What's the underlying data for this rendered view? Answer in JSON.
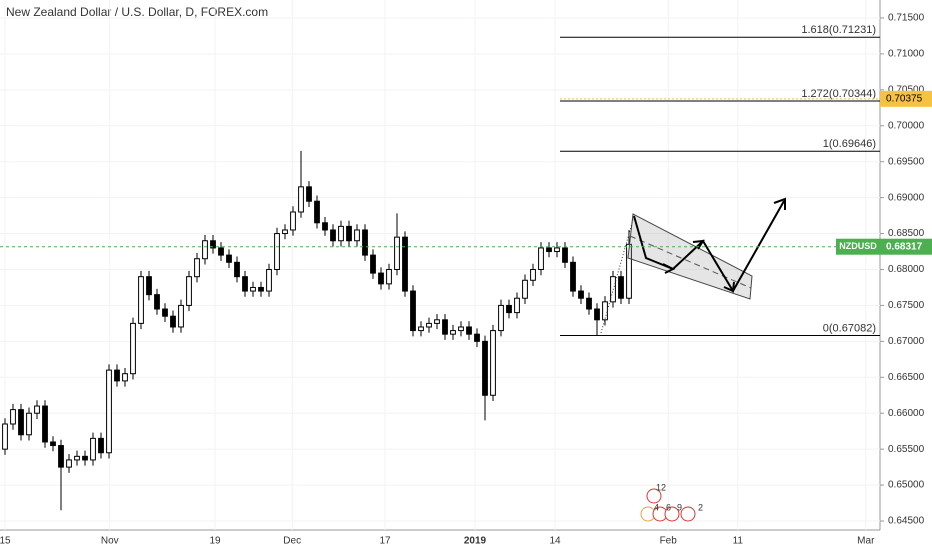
{
  "chart_data": {
    "type": "candlestick",
    "title": "New Zealand Dollar / U.S. Dollar, D, FOREX.com",
    "up_color": "#ffffff",
    "down_color": "#000000",
    "wick_color": "#000000",
    "open": [
      0.655,
      0.6585,
      0.6605,
      0.657,
      0.66,
      0.661,
      0.656,
      0.6555,
      0.6525,
      0.6535,
      0.654,
      0.6535,
      0.6565,
      0.6545,
      0.666,
      0.6645,
      0.6655,
      0.6725,
      0.679,
      0.6765,
      0.6745,
      0.6735,
      0.672,
      0.675,
      0.679,
      0.6815,
      0.684,
      0.683,
      0.682,
      0.681,
      0.679,
      0.677,
      0.6775,
      0.677,
      0.68,
      0.685,
      0.6855,
      0.688,
      0.6915,
      0.6895,
      0.6865,
      0.6855,
      0.684,
      0.686,
      0.684,
      0.6855,
      0.682,
      0.6795,
      0.678,
      0.68,
      0.6845,
      0.677,
      0.6715,
      0.672,
      0.6725,
      0.673,
      0.671,
      0.6715,
      0.672,
      0.671,
      0.67,
      0.6625,
      0.6715,
      0.675,
      0.674,
      0.676,
      0.6785,
      0.68,
      0.683,
      0.6825,
      0.683,
      0.681,
      0.677,
      0.676,
      0.6745,
      0.673,
      0.6755,
      0.679,
      0.676
    ],
    "high": [
      0.6593,
      0.6613,
      0.6613,
      0.6608,
      0.6618,
      0.6618,
      0.6568,
      0.6563,
      0.6543,
      0.6548,
      0.6548,
      0.6573,
      0.6573,
      0.6668,
      0.6668,
      0.6663,
      0.6733,
      0.6798,
      0.6798,
      0.6773,
      0.6753,
      0.6743,
      0.6758,
      0.6798,
      0.6823,
      0.6848,
      0.6848,
      0.6838,
      0.6828,
      0.6818,
      0.6798,
      0.6783,
      0.6783,
      0.6808,
      0.6858,
      0.6863,
      0.6888,
      0.6965,
      0.6923,
      0.6903,
      0.6873,
      0.6863,
      0.6868,
      0.6868,
      0.6863,
      0.6863,
      0.6828,
      0.6803,
      0.6808,
      0.6878,
      0.6853,
      0.6778,
      0.6728,
      0.6733,
      0.6738,
      0.6738,
      0.6723,
      0.6728,
      0.6728,
      0.6718,
      0.6708,
      0.6723,
      0.6758,
      0.6758,
      0.6768,
      0.6793,
      0.6808,
      0.6838,
      0.6838,
      0.6838,
      0.6838,
      0.6818,
      0.6778,
      0.6768,
      0.6753,
      0.6763,
      0.6798,
      0.6798,
      0.6855
    ],
    "low": [
      0.6542,
      0.6577,
      0.6562,
      0.6562,
      0.6592,
      0.6552,
      0.6547,
      0.6465,
      0.6517,
      0.6527,
      0.6527,
      0.6527,
      0.6537,
      0.6537,
      0.6637,
      0.6637,
      0.6647,
      0.6717,
      0.6757,
      0.6737,
      0.6727,
      0.6712,
      0.6712,
      0.6742,
      0.6782,
      0.6807,
      0.6822,
      0.6812,
      0.6802,
      0.6782,
      0.6762,
      0.6762,
      0.6762,
      0.6762,
      0.6792,
      0.6842,
      0.6847,
      0.6872,
      0.6887,
      0.6857,
      0.6847,
      0.6832,
      0.6832,
      0.6832,
      0.6832,
      0.6812,
      0.6787,
      0.6772,
      0.6772,
      0.6792,
      0.6762,
      0.6707,
      0.6707,
      0.6712,
      0.6717,
      0.6702,
      0.6702,
      0.6707,
      0.6702,
      0.6692,
      0.659,
      0.6617,
      0.6707,
      0.6732,
      0.6732,
      0.6752,
      0.6777,
      0.6792,
      0.6817,
      0.6817,
      0.6802,
      0.6762,
      0.6752,
      0.6737,
      0.6708,
      0.6722,
      0.6747,
      0.6752,
      0.6752
    ],
    "close": [
      0.6585,
      0.6605,
      0.657,
      0.66,
      0.661,
      0.656,
      0.6555,
      0.6525,
      0.6535,
      0.654,
      0.6535,
      0.6565,
      0.6545,
      0.666,
      0.6645,
      0.6655,
      0.6725,
      0.679,
      0.6765,
      0.6745,
      0.6735,
      0.672,
      0.675,
      0.679,
      0.6815,
      0.684,
      0.683,
      0.682,
      0.681,
      0.679,
      0.677,
      0.6775,
      0.677,
      0.68,
      0.685,
      0.6855,
      0.688,
      0.6915,
      0.6895,
      0.6865,
      0.6855,
      0.684,
      0.686,
      0.684,
      0.6855,
      0.682,
      0.6795,
      0.678,
      0.68,
      0.6845,
      0.677,
      0.6715,
      0.672,
      0.6725,
      0.673,
      0.671,
      0.6715,
      0.672,
      0.671,
      0.67,
      0.6625,
      0.6715,
      0.675,
      0.674,
      0.676,
      0.6785,
      0.68,
      0.683,
      0.6825,
      0.683,
      0.681,
      0.677,
      0.676,
      0.6745,
      0.673,
      0.6755,
      0.679,
      0.676,
      0.6835
    ],
    "xlim": [
      -0.625,
      109.375
    ],
    "xticks": [
      {
        "value": 0,
        "label": "15"
      },
      {
        "value": 13.1,
        "label": "Nov"
      },
      {
        "value": 26.25,
        "label": "19"
      },
      {
        "value": 35.9,
        "label": "Dec"
      },
      {
        "value": 47.5,
        "label": "17"
      },
      {
        "value": 58.75,
        "label": "2019"
      },
      {
        "value": 68.75,
        "label": "14"
      },
      {
        "value": 82.9,
        "label": "Feb"
      },
      {
        "value": 91.6,
        "label": "11"
      },
      {
        "value": 107.6,
        "label": "Mar"
      }
    ],
    "ylim": [
      0.64375,
      0.7175
    ],
    "yticks": [
      {
        "value": 0.645,
        "label": "0.64500"
      },
      {
        "value": 0.65,
        "label": "0.65000"
      },
      {
        "value": 0.655,
        "label": "0.65500"
      },
      {
        "value": 0.66,
        "label": "0.66000"
      },
      {
        "value": 0.665,
        "label": "0.66500"
      },
      {
        "value": 0.67,
        "label": "0.67000"
      },
      {
        "value": 0.675,
        "label": "0.67500"
      },
      {
        "value": 0.68,
        "label": "0.68000"
      },
      {
        "value": 0.685,
        "label": "0.68500"
      },
      {
        "value": 0.69,
        "label": "0.69000"
      },
      {
        "value": 0.695,
        "label": "0.69500"
      },
      {
        "value": 0.7,
        "label": "0.70000"
      },
      {
        "value": 0.705,
        "label": "0.70500"
      },
      {
        "value": 0.71,
        "label": "0.71000"
      },
      {
        "value": 0.715,
        "label": "0.71500"
      }
    ],
    "fib_levels": [
      {
        "value": 0.71231,
        "label": "1.618(0.71231)"
      },
      {
        "value": 0.70344,
        "label": "1.272(0.70344)"
      },
      {
        "value": 0.69646,
        "label": "1(0.69646)"
      },
      {
        "value": 0.67082,
        "label": "0(0.67082)"
      }
    ],
    "last_price": {
      "name": "NZDUSD",
      "value": 0.68317,
      "label": "0.68317",
      "color": "#4caf50"
    },
    "alert_line": {
      "value": 0.70375,
      "label": "0.70375",
      "color": "#f5c242"
    },
    "events": [
      "12",
      "4",
      "6",
      "9",
      "2"
    ]
  }
}
